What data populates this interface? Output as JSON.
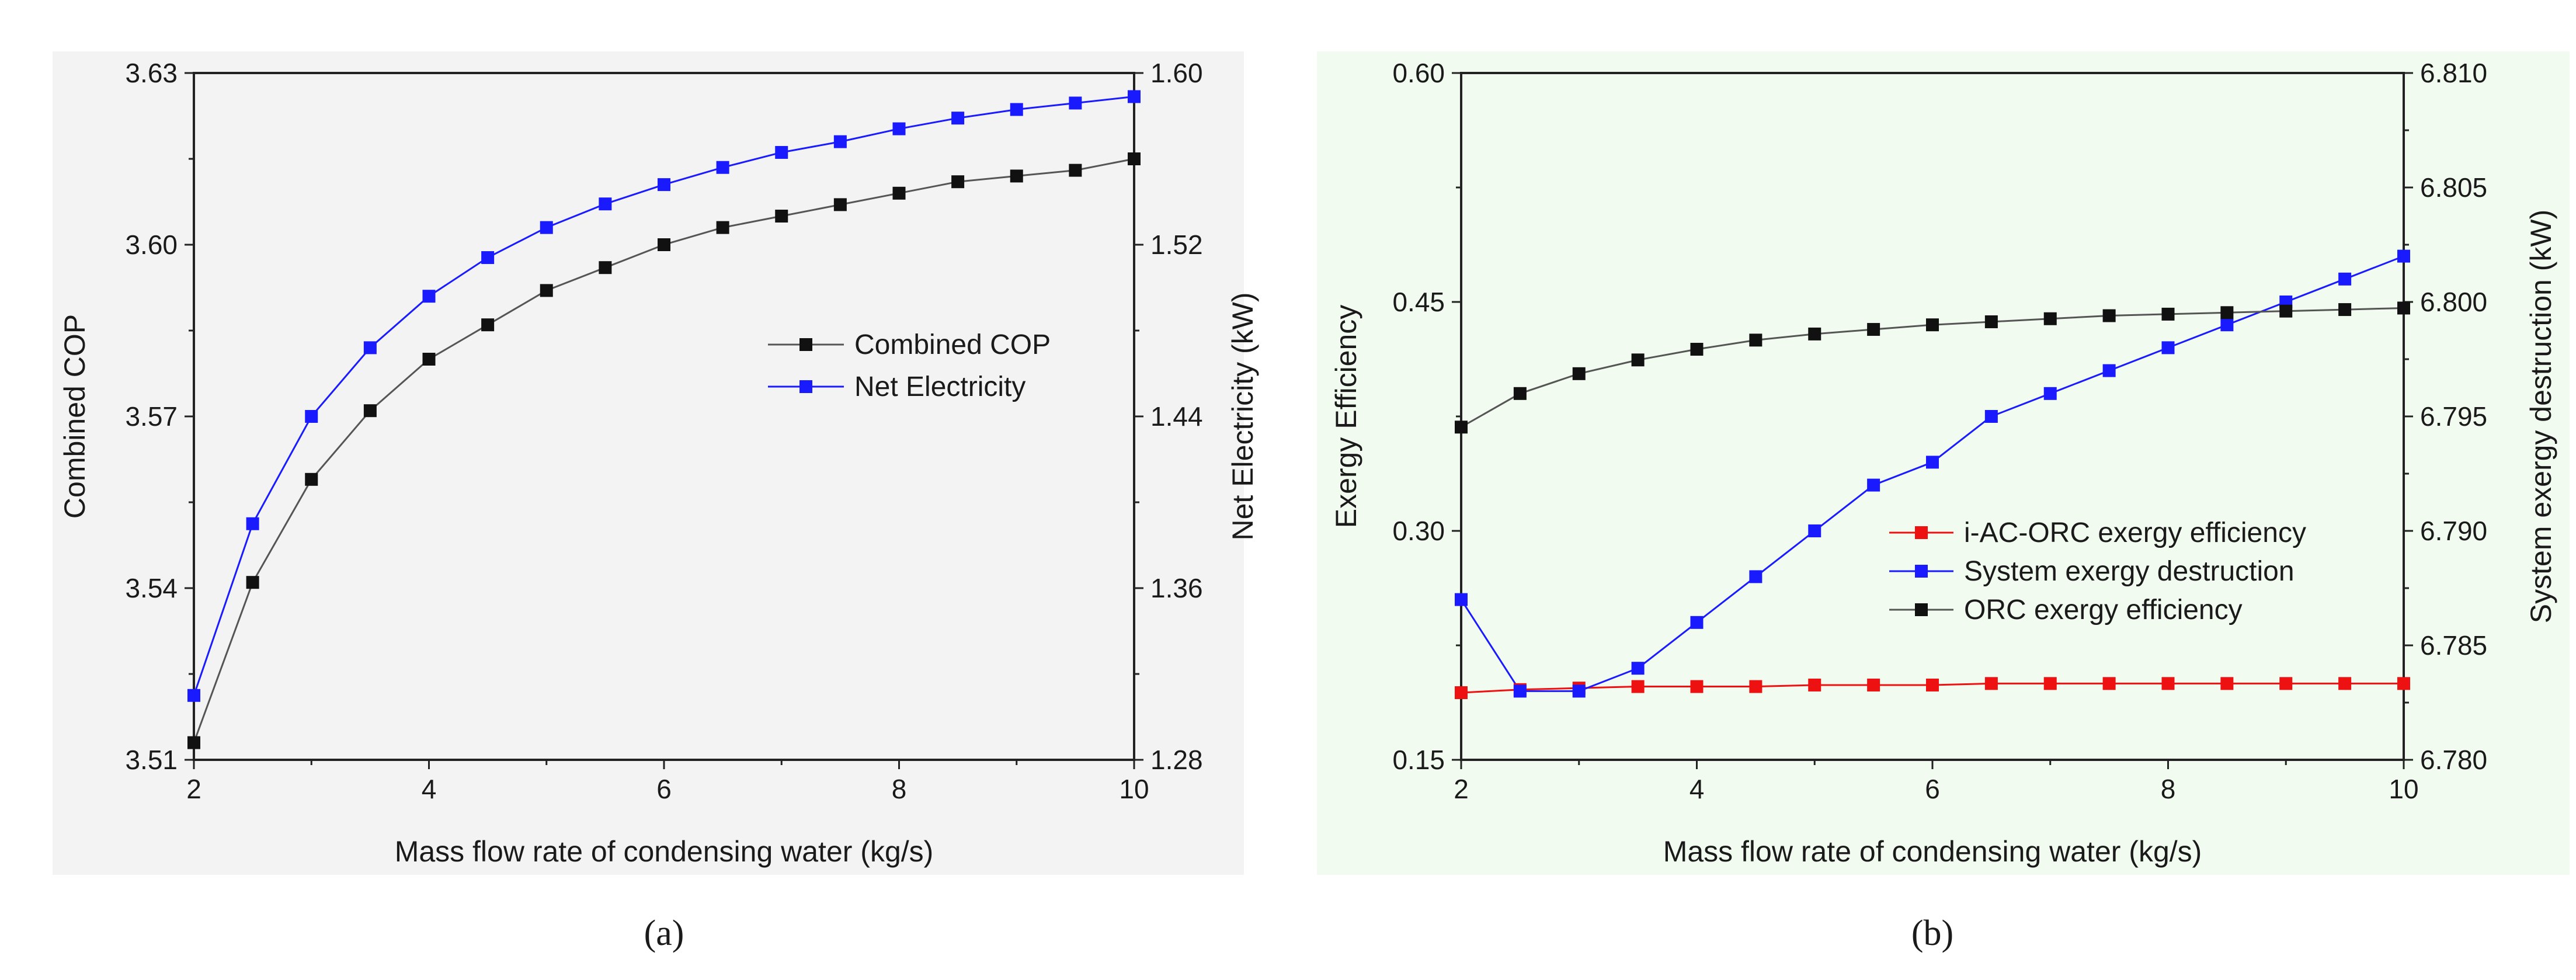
{
  "colors": {
    "black": "#111111",
    "blue": "#1a1aff",
    "red": "#ee1111",
    "bg_a": "#f3f3f3",
    "bg_b": "#f1fbef"
  },
  "chart_data": [
    {
      "type": "line",
      "panel_label": "(a)",
      "xlabel": "Mass flow rate of condensing water (kg/s)",
      "ylabel": "Combined COP",
      "y2label": "Net Electricity (kW)",
      "xlim": [
        2,
        10
      ],
      "ylim": [
        3.51,
        3.63
      ],
      "y2lim": [
        1.28,
        1.6
      ],
      "xticks": [
        "2",
        "4",
        "6",
        "8",
        "10"
      ],
      "yticks": [
        "3.51",
        "3.54",
        "3.57",
        "3.60",
        "3.63"
      ],
      "y2ticks": [
        "1.28",
        "1.36",
        "1.44",
        "1.52",
        "1.60"
      ],
      "legend_position": "center-right",
      "x": [
        2,
        2.5,
        3,
        3.5,
        4,
        4.5,
        5,
        5.5,
        6,
        6.5,
        7,
        7.5,
        8,
        8.5,
        9,
        9.5,
        10
      ],
      "series": [
        {
          "name": "Combined COP",
          "axis": "left",
          "color": "#111111",
          "values": [
            3.513,
            3.541,
            3.559,
            3.571,
            3.58,
            3.586,
            3.592,
            3.596,
            3.6,
            3.603,
            3.605,
            3.607,
            3.609,
            3.611,
            3.612,
            3.613,
            3.615
          ]
        },
        {
          "name": "Net Electricity",
          "axis": "right",
          "color": "#1a1aff",
          "values": [
            1.31,
            1.39,
            1.44,
            1.472,
            1.496,
            1.514,
            1.528,
            1.539,
            1.548,
            1.556,
            1.563,
            1.568,
            1.574,
            1.579,
            1.583,
            1.586,
            1.589
          ]
        }
      ]
    },
    {
      "type": "line",
      "panel_label": "(b)",
      "xlabel": "Mass flow rate of condensing water (kg/s)",
      "ylabel": "Exergy Efficiency",
      "y2label": "System exergy destruction (kW)",
      "xlim": [
        2,
        10
      ],
      "ylim": [
        0.15,
        0.6
      ],
      "y2lim": [
        6.78,
        6.81
      ],
      "xticks": [
        "2",
        "4",
        "6",
        "8",
        "10"
      ],
      "yticks": [
        "0.15",
        "0.30",
        "0.45",
        "0.60"
      ],
      "y2ticks": [
        "6.780",
        "6.785",
        "6.790",
        "6.795",
        "6.800",
        "6.805",
        "6.810"
      ],
      "legend_position": "center-right",
      "x": [
        2,
        2.5,
        3,
        3.5,
        4,
        4.5,
        5,
        5.5,
        6,
        6.5,
        7,
        7.5,
        8,
        8.5,
        9,
        9.5,
        10
      ],
      "series": [
        {
          "name": "i-AC-ORC exergy efficiency",
          "axis": "left",
          "color": "#ee1111",
          "values": [
            0.194,
            0.196,
            0.197,
            0.198,
            0.198,
            0.198,
            0.199,
            0.199,
            0.199,
            0.2,
            0.2,
            0.2,
            0.2,
            0.2,
            0.2,
            0.2,
            0.2
          ]
        },
        {
          "name": "System exergy destruction",
          "axis": "right",
          "color": "#1a1aff",
          "values": [
            6.787,
            6.783,
            6.783,
            6.784,
            6.786,
            6.788,
            6.79,
            6.792,
            6.793,
            6.795,
            6.796,
            6.797,
            6.798,
            6.799,
            6.8,
            6.801,
            6.802
          ]
        },
        {
          "name": "ORC exergy efficiency",
          "axis": "left",
          "color": "#111111",
          "values": [
            0.368,
            0.39,
            0.403,
            0.412,
            0.419,
            0.425,
            0.429,
            0.432,
            0.435,
            0.437,
            0.439,
            0.441,
            0.442,
            0.443,
            0.444,
            0.445,
            0.446
          ]
        }
      ]
    }
  ]
}
